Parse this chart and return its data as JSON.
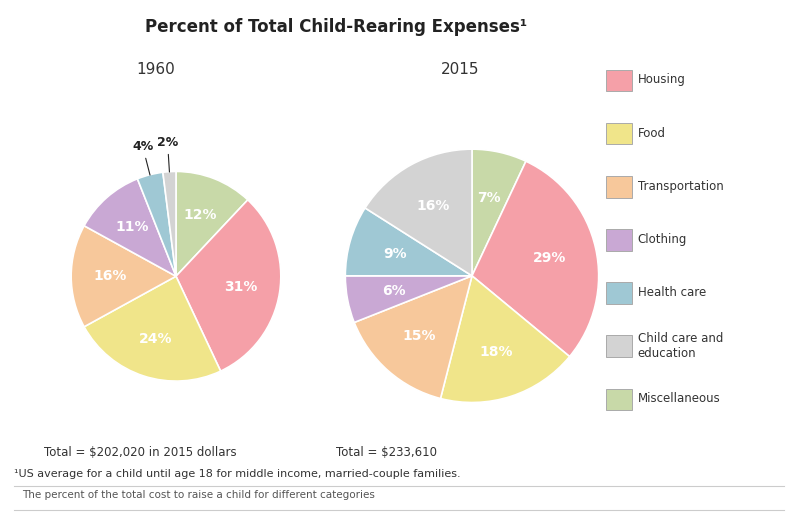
{
  "title": "Percent of Total Child-Rearing Expenses¹",
  "subtitle_1960": "1960",
  "subtitle_2015": "2015",
  "total_1960": "Total = $202,020 in 2015 dollars",
  "total_2015": "Total = $233,610",
  "footnote1": "¹US average for a child until age 18 for middle income, married-couple families.",
  "footnote2": "The percent of the total cost to raise a child for different categories",
  "categories": [
    "Housing",
    "Food",
    "Transportation",
    "Clothing",
    "Health care",
    "Child care and\neducation",
    "Miscellaneous"
  ],
  "colors": [
    "#F5A0A8",
    "#F0E58A",
    "#F7C89B",
    "#C9A8D4",
    "#9FC8D4",
    "#D3D3D3",
    "#C8D9A8"
  ],
  "values_1960": [
    31,
    24,
    16,
    11,
    4,
    2,
    12
  ],
  "values_2015": [
    29,
    18,
    15,
    6,
    9,
    16,
    7
  ],
  "labels_1960": [
    "31%",
    "24%",
    "16%",
    "11%",
    "4%",
    "2%",
    "12%"
  ],
  "labels_2015": [
    "29%",
    "18%",
    "15%",
    "6%",
    "9%",
    "16%",
    "7%"
  ],
  "background_color": "#FFFFFF"
}
